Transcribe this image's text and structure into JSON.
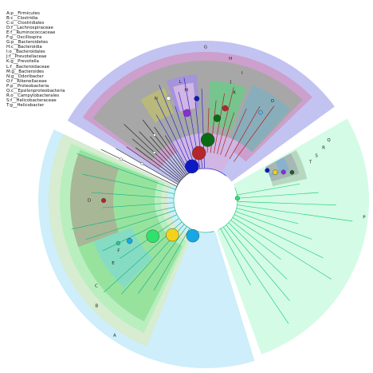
{
  "legend": [
    "A:p__Firmicutes",
    "B:c__Clostridia",
    "C:o__Clostridiales",
    "D:f__Lachnospiraceae",
    "E:f__Ruminococcaceae",
    "F:g__Oscillospira",
    "G:p__Bacteroidetes",
    "H:c__Bacteroidia",
    "I:o__Bacteroidales",
    "J:f__Prevotellaceae",
    "K:g__Prevotella",
    "L:f__Bacteroidaceae",
    "M:g__Bacteroides",
    "N:g__Odoribacter",
    "O:f__Rikenellaceae",
    "P:p__Proteobacteria",
    "Q:c__Epsilonproteobacteria",
    "R:o__Campylobacterales",
    "S:f__Helicobacteraceae",
    "T:g__Helicobacter"
  ],
  "ring_labels": {
    "A": "A",
    "B": "B",
    "C": "C",
    "D": "D",
    "E": "E",
    "F": "F",
    "G": "G",
    "H": "H",
    "I": "I",
    "J": "J",
    "K": "K",
    "L": "L",
    "M": "M",
    "N": "N",
    "O": "O",
    "P": "P",
    "Q": "Q",
    "R": "R",
    "S": "S",
    "T": "T"
  },
  "colors": {
    "firmicutes_light": "#cdeefa",
    "firmicutes_mid": "#d7ecd0",
    "firmicutes_green": "#b9efbf",
    "firmicutes_lime": "#97e39e",
    "firmicutes_olive": "#a8b795",
    "firmicutes_teal": "#86dcc3",
    "bacteroidetes_outer": "#c2c3f1",
    "bacteroidetes_pink": "#cc9fcc",
    "bacteroidetes_grey": "#a7a7a7",
    "bacteroidetes_inner": "#d1b5e4",
    "bacteroidetes_olive": "#b9b97c",
    "bacteroidetes_purple": "#a593db",
    "bacteroidetes_green": "#77c58e",
    "bacteroidetes_steel": "#88aebb",
    "proteo_outer": "#d4fbe6",
    "proteo_mid": "#b6d8bf",
    "proteo_inner": "#a6b7b5",
    "proteo_steel": "#8ab2cc",
    "node_blue": "#0d19c4",
    "node_red": "#b4262c",
    "node_darkgreen": "#0b6a14",
    "node_cyan": "#16a8e6",
    "node_yellow": "#f3d21b",
    "node_green": "#2ee36b",
    "node_purple": "#8c2bd8",
    "branch_grey": "#2a2a2a",
    "branch_blue": "#2a2acc",
    "branch_red": "#b02020",
    "branch_green": "#2bd17a",
    "branch_teal": "#1fb58a"
  }
}
